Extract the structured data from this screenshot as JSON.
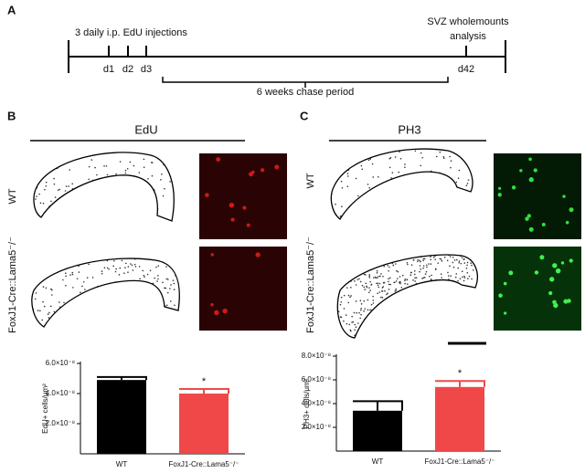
{
  "panel_a": {
    "label": "A",
    "injections": "3 daily i.p. EdU injections",
    "analysis_line1": "SVZ wholemounts",
    "analysis_line2": "analysis",
    "days": [
      "d1",
      "d2",
      "d3",
      "d42"
    ],
    "chase": "6 weeks chase period"
  },
  "panel_b": {
    "label": "B",
    "title": "EdU",
    "row1": "WT",
    "row2": "FoxJ1-Cre::Lama5⁻/⁻"
  },
  "panel_c": {
    "label": "C",
    "title": "PH3",
    "row1": "WT",
    "row2": "FoxJ1-Cre::Lama5⁻/⁻"
  },
  "chart_data": [
    {
      "type": "bar",
      "ylabel": "EdU+ cells/μm²",
      "categories": [
        "WT",
        "FoxJ1-Cre::Lama5⁻/⁻"
      ],
      "values": [
        4.9e-08,
        4e-08
      ],
      "errors": [
        2e-09,
        3e-09
      ],
      "colors": [
        "#000000",
        "#f04848"
      ],
      "ylim": [
        0,
        6e-08
      ],
      "yticks": [
        {
          "value": 2e-08,
          "label": "2.0×10⁻⁸"
        },
        {
          "value": 4e-08,
          "label": "4.0×10⁻⁸"
        },
        {
          "value": 6e-08,
          "label": "6.0×10⁻⁸"
        }
      ],
      "annotation": "*"
    },
    {
      "type": "bar",
      "ylabel": "PH3+ cells/μm²",
      "categories": [
        "WT",
        "FoxJ1-Cre::Lama5⁻/⁻"
      ],
      "values": [
        3.4e-08,
        5.4e-08
      ],
      "errors": [
        8e-09,
        5e-09
      ],
      "colors": [
        "#000000",
        "#f04848"
      ],
      "ylim": [
        0,
        8e-08
      ],
      "yticks": [
        {
          "value": 2e-08,
          "label": "2.0×10⁻⁸"
        },
        {
          "value": 4e-08,
          "label": "4.0×10⁻⁸"
        },
        {
          "value": 6e-08,
          "label": "6.0×10⁻⁸"
        },
        {
          "value": 8e-08,
          "label": "8.0×10⁻⁸"
        }
      ],
      "annotation": "*"
    }
  ]
}
